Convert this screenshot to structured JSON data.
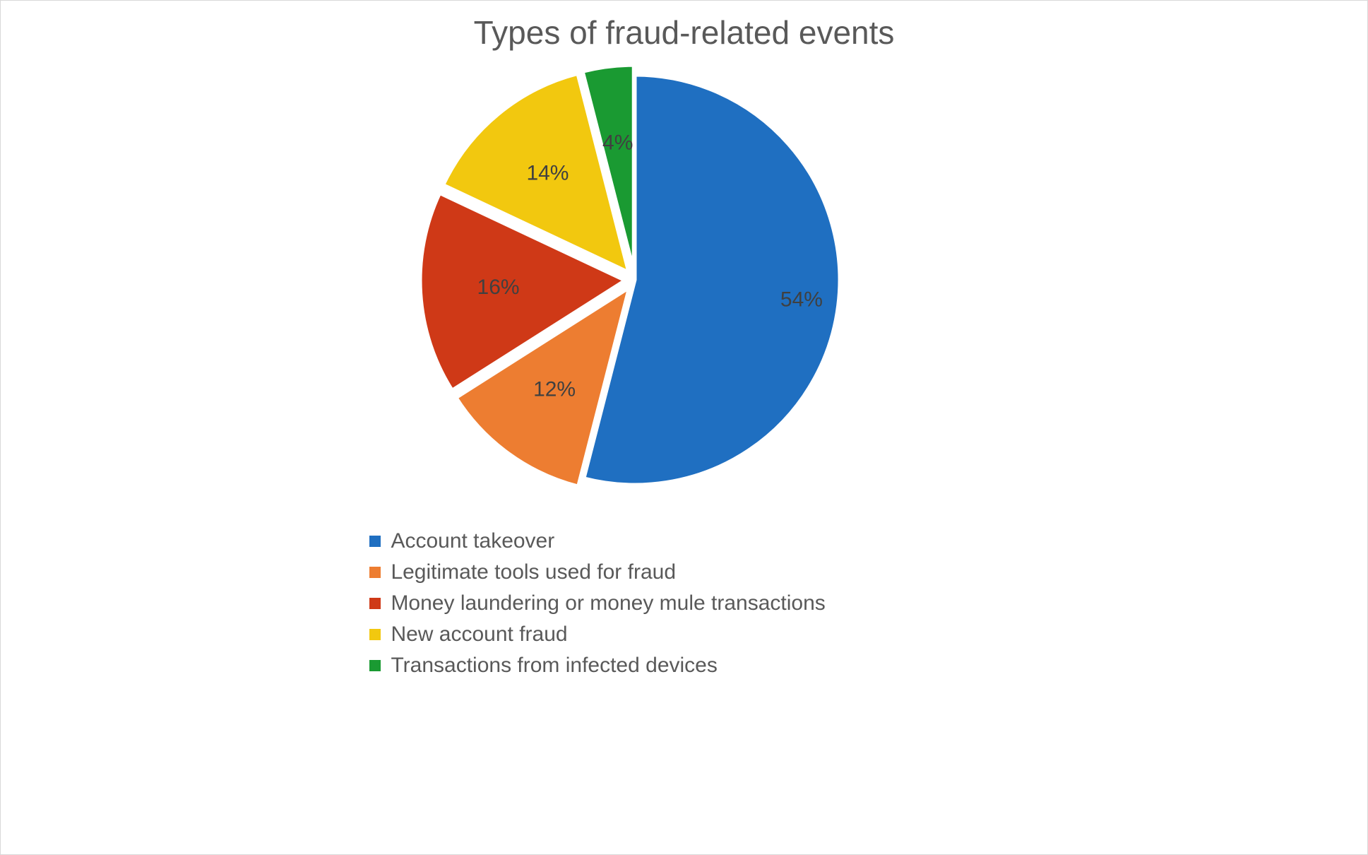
{
  "chart": {
    "type": "pie",
    "title": "Types of fraud-related events",
    "title_color": "#595959",
    "title_fontsize": 46,
    "background_color": "#ffffff",
    "border_color": "#d9d9d9",
    "pie_radius": 290,
    "pie_center_offset_x": -140,
    "explode_offset": 14,
    "slice_stroke_color": "#ffffff",
    "slice_stroke_width": 5,
    "start_angle_deg": 0,
    "label_color": "#404040",
    "label_fontsize": 30,
    "label_radius_ratio_default": 0.62,
    "label_radius_ratio_first": 0.82,
    "legend_marker_size": 16,
    "legend_label_color": "#595959",
    "legend_label_fontsize": 30,
    "series": [
      {
        "label": "Account takeover",
        "value": 54,
        "display": "54%",
        "color": "#1f6fc1",
        "exploded": false
      },
      {
        "label": "Legitimate tools used for fraud",
        "value": 12,
        "display": "12%",
        "color": "#ed7d31",
        "exploded": true
      },
      {
        "label": "Money laundering or money mule transactions",
        "value": 16,
        "display": "16%",
        "color": "#cf3917",
        "exploded": true
      },
      {
        "label": "New account fraud",
        "value": 14,
        "display": "14%",
        "color": "#f2c80f",
        "exploded": true
      },
      {
        "label": "Transactions from infected devices",
        "value": 4,
        "display": "4%",
        "color": "#1a9a32",
        "exploded": true
      }
    ]
  }
}
